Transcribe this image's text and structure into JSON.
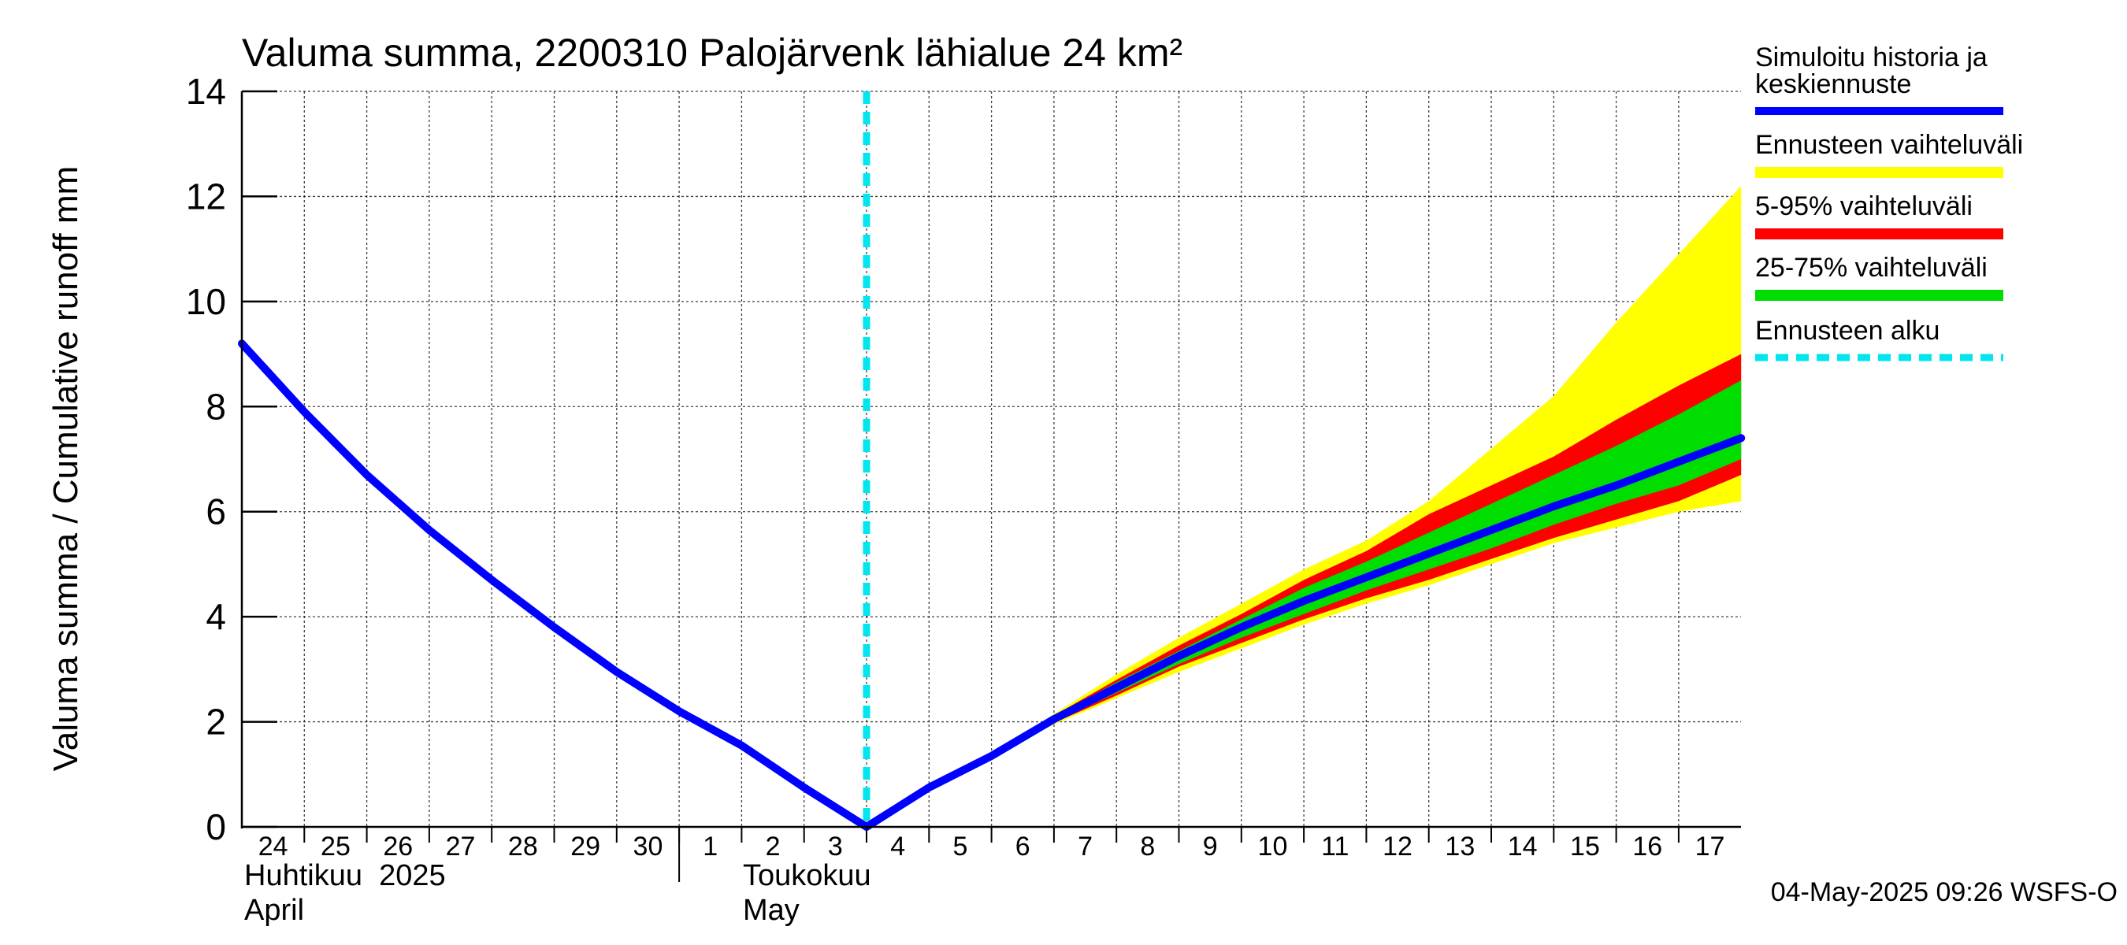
{
  "chart_data": {
    "type": "area",
    "title": "Valuma summa, 2200310 Palojärvenk lähialue 24 km²",
    "ylabel": "Valuma summa / Cumulative runoff    mm",
    "ylim": [
      0,
      14
    ],
    "yticks": [
      "0",
      "2",
      "4",
      "6",
      "8",
      "10",
      "12",
      "14"
    ],
    "x_range": [
      "2025-04-24",
      "2025-05-17"
    ],
    "day_labels": [
      "24",
      "25",
      "26",
      "27",
      "28",
      "29",
      "30",
      "1",
      "2",
      "3",
      "4",
      "5",
      "6",
      "7",
      "8",
      "9",
      "10",
      "11",
      "12",
      "13",
      "14",
      "15",
      "16",
      "17"
    ],
    "month_labels": [
      {
        "fi": "Huhtikuu  2025",
        "en": "April"
      },
      {
        "fi": "Toukokuu",
        "en": "May"
      }
    ],
    "grid": true,
    "legend_position": "right",
    "forecast_start": "2025-05-04",
    "footer": "04-May-2025 09:26 WSFS-O",
    "legend": [
      {
        "label": "Simuloitu historia ja keskiennuste",
        "line1": "Simuloitu historia ja",
        "line2": "keskiennuste",
        "color": "#0000ff",
        "style": "solid"
      },
      {
        "label": "Ennusteen vaihteluväli",
        "color": "#ffff00",
        "style": "solid"
      },
      {
        "label": "5-95% vaihteluväli",
        "color": "#ff0000",
        "style": "solid"
      },
      {
        "label": "25-75% vaihteluväli",
        "color": "#00dd00",
        "style": "solid"
      },
      {
        "label": "Ennusteen alku",
        "color": "#00e5ee",
        "style": "dashed"
      }
    ],
    "series": [
      {
        "name": "Simuloitu historia ja keskiennuste",
        "color": "#0000ff",
        "x": [
          "2025-04-24",
          "2025-04-25",
          "2025-04-26",
          "2025-04-27",
          "2025-04-28",
          "2025-04-29",
          "2025-04-30",
          "2025-05-01",
          "2025-05-02",
          "2025-05-03",
          "2025-05-04",
          "2025-05-05",
          "2025-05-06",
          "2025-05-07",
          "2025-05-08",
          "2025-05-09",
          "2025-05-10",
          "2025-05-11",
          "2025-05-12",
          "2025-05-13",
          "2025-05-14",
          "2025-05-15",
          "2025-05-16",
          "2025-05-17",
          "2025-05-18"
        ],
        "y": [
          9.2,
          7.9,
          6.7,
          5.65,
          4.7,
          3.8,
          2.95,
          2.2,
          1.55,
          0.75,
          0.0,
          0.75,
          1.35,
          2.05,
          2.65,
          3.25,
          3.8,
          4.3,
          4.75,
          5.2,
          5.65,
          6.1,
          6.5,
          6.95,
          7.4
        ]
      }
    ],
    "bands": {
      "x": [
        "2025-05-06",
        "2025-05-07",
        "2025-05-08",
        "2025-05-09",
        "2025-05-10",
        "2025-05-11",
        "2025-05-12",
        "2025-05-13",
        "2025-05-14",
        "2025-05-15",
        "2025-05-16",
        "2025-05-17",
        "2025-05-18"
      ],
      "ennusteen_vaihteluvali": {
        "low": [
          1.35,
          1.95,
          2.45,
          2.95,
          3.4,
          3.85,
          4.25,
          4.6,
          5.0,
          5.4,
          5.7,
          6.0,
          6.2
        ],
        "high": [
          1.35,
          2.15,
          2.9,
          3.6,
          4.25,
          4.9,
          5.45,
          6.2,
          7.2,
          8.2,
          9.6,
          10.9,
          12.2
        ]
      },
      "p5_95": {
        "low": [
          1.35,
          1.98,
          2.5,
          3.05,
          3.5,
          3.95,
          4.35,
          4.7,
          5.1,
          5.5,
          5.85,
          6.2,
          6.7
        ],
        "high": [
          1.35,
          2.12,
          2.8,
          3.45,
          4.05,
          4.7,
          5.25,
          5.95,
          6.5,
          7.05,
          7.75,
          8.4,
          9.0
        ]
      },
      "p25_75": {
        "low": [
          1.35,
          2.0,
          2.55,
          3.1,
          3.6,
          4.05,
          4.5,
          4.9,
          5.3,
          5.75,
          6.15,
          6.5,
          7.0
        ],
        "high": [
          1.35,
          2.1,
          2.75,
          3.35,
          3.95,
          4.55,
          5.05,
          5.6,
          6.15,
          6.7,
          7.25,
          7.85,
          8.5
        ]
      }
    }
  }
}
